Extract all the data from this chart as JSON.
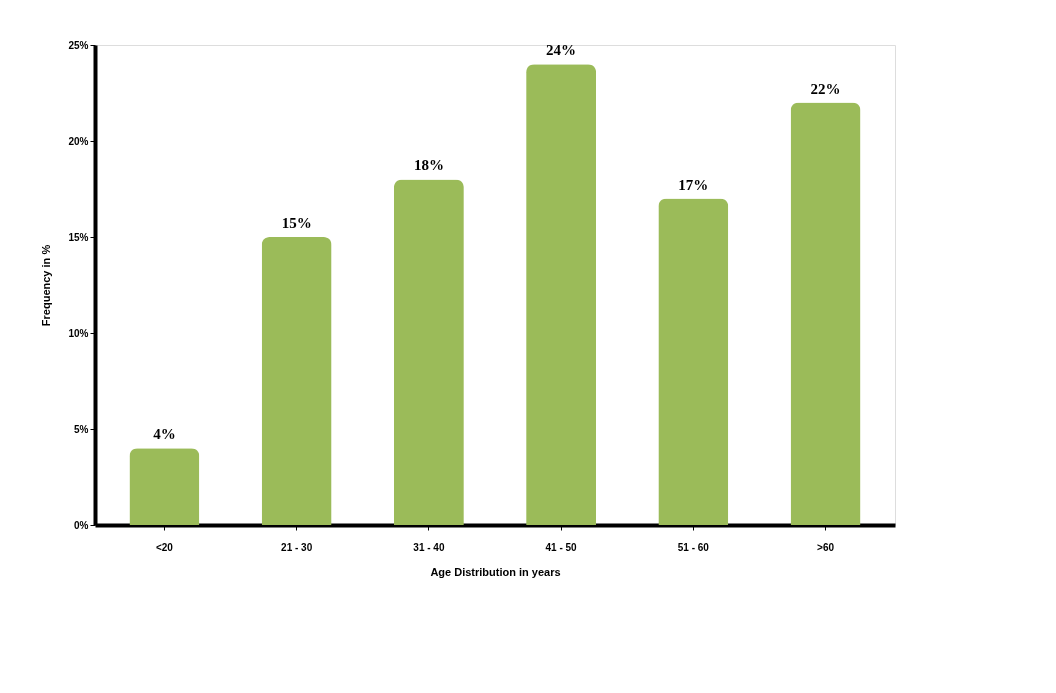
{
  "chart_data": {
    "type": "bar",
    "categories": [
      "<20",
      "21 - 30",
      "31 - 40",
      "41 - 50",
      "51 - 60",
      ">60"
    ],
    "values": [
      4,
      15,
      18,
      24,
      17,
      22
    ],
    "value_labels": [
      "4%",
      "15%",
      "18%",
      "24%",
      "17%",
      "22%"
    ],
    "color": "#9bbb59",
    "xlabel": "Age Distribution in years",
    "ylabel": "Frequency in %",
    "ylim": [
      0,
      25
    ],
    "yticks": [
      {
        "value": 0,
        "label": "0%"
      },
      {
        "value": 5,
        "label": "5%"
      },
      {
        "value": 10,
        "label": "10%"
      },
      {
        "value": 15,
        "label": "15%"
      },
      {
        "value": 20,
        "label": "20%"
      },
      {
        "value": 25,
        "label": "25%"
      }
    ],
    "grid": false
  }
}
